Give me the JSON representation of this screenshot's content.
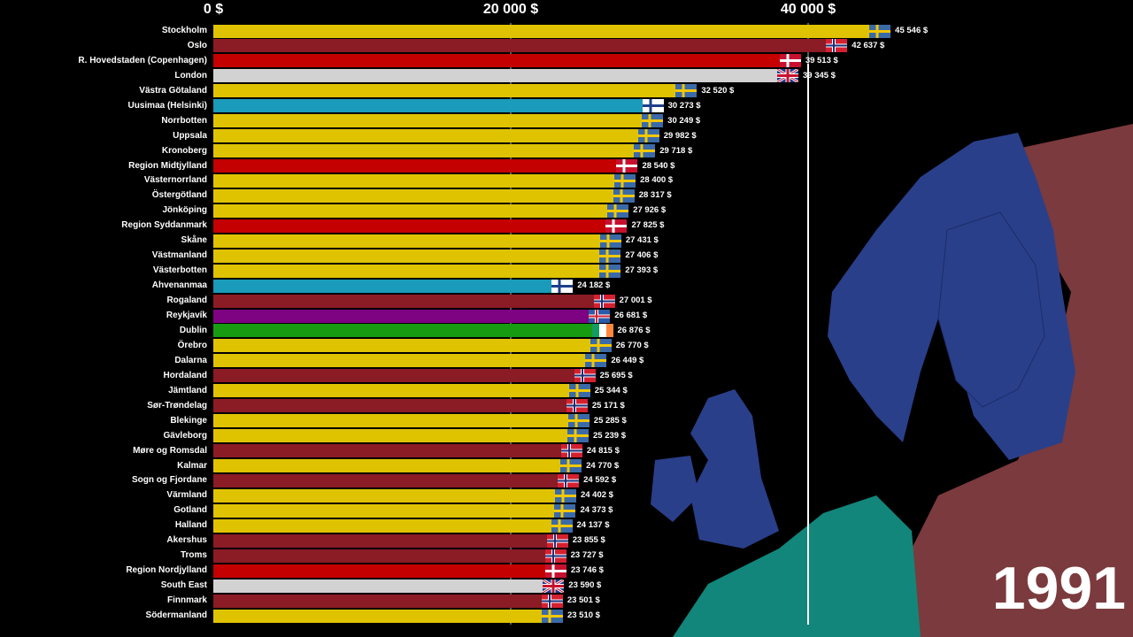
{
  "chart_data": {
    "type": "bar",
    "orientation": "horizontal",
    "xlim": [
      0,
      47000
    ],
    "x_ticks": [
      "0 $",
      "20 000 $",
      "40 000 $"
    ],
    "x_tick_values": [
      0,
      20000,
      40000
    ],
    "value_suffix": " $",
    "year": "1991",
    "country_colors": {
      "Sweden": "#e0c300",
      "Norway": "#8b1b25",
      "Denmark": "#c40000",
      "UK": "#d2d2d2",
      "Finland": "#1a9bb9",
      "Iceland": "#7d0383",
      "Ireland": "#179b11"
    },
    "bars": [
      {
        "label": "Stockholm",
        "value": 45546,
        "value_label": "45 546 $",
        "country": "Sweden"
      },
      {
        "label": "Oslo",
        "value": 42637,
        "value_label": "42 637 $",
        "country": "Norway"
      },
      {
        "label": "R. Hovedstaden (Copenhagen)",
        "value": 39513,
        "value_label": "39 513 $",
        "country": "Denmark"
      },
      {
        "label": "London",
        "value": 39345,
        "value_label": "39 345 $",
        "country": "UK"
      },
      {
        "label": "Västra Götaland",
        "value": 32520,
        "value_label": "32 520 $",
        "country": "Sweden"
      },
      {
        "label": "Uusimaa (Helsinki)",
        "value": 30273,
        "value_label": "30 273 $",
        "country": "Finland"
      },
      {
        "label": "Norrbotten",
        "value": 30249,
        "value_label": "30 249 $",
        "country": "Sweden"
      },
      {
        "label": "Uppsala",
        "value": 29982,
        "value_label": "29 982 $",
        "country": "Sweden"
      },
      {
        "label": "Kronoberg",
        "value": 29718,
        "value_label": "29 718 $",
        "country": "Sweden"
      },
      {
        "label": "Region Midtjylland",
        "value": 28540,
        "value_label": "28 540 $",
        "country": "Denmark"
      },
      {
        "label": "Västernorrland",
        "value": 28400,
        "value_label": "28 400 $",
        "country": "Sweden"
      },
      {
        "label": "Östergötland",
        "value": 28317,
        "value_label": "28 317 $",
        "country": "Sweden"
      },
      {
        "label": "Jönköping",
        "value": 27926,
        "value_label": "27 926 $",
        "country": "Sweden"
      },
      {
        "label": "Region Syddanmark",
        "value": 27825,
        "value_label": "27 825 $",
        "country": "Denmark"
      },
      {
        "label": "Skåne",
        "value": 27431,
        "value_label": "27 431 $",
        "country": "Sweden"
      },
      {
        "label": "Västmanland",
        "value": 27406,
        "value_label": "27 406 $",
        "country": "Sweden"
      },
      {
        "label": "Västerbotten",
        "value": 27393,
        "value_label": "27 393 $",
        "country": "Sweden"
      },
      {
        "label": "Ahvenanmaa",
        "value": 24182,
        "value_label": "24 182 $",
        "country": "Finland"
      },
      {
        "label": "Rogaland",
        "value": 27001,
        "value_label": "27 001 $",
        "country": "Norway"
      },
      {
        "label": "Reykjavík",
        "value": 26681,
        "value_label": "26 681 $",
        "country": "Iceland"
      },
      {
        "label": "Dublin",
        "value": 26876,
        "value_label": "26 876 $",
        "country": "Ireland"
      },
      {
        "label": "Örebro",
        "value": 26770,
        "value_label": "26 770 $",
        "country": "Sweden"
      },
      {
        "label": "Dalarna",
        "value": 26449,
        "value_label": "26 449 $",
        "country": "Sweden"
      },
      {
        "label": "Hordaland",
        "value": 25695,
        "value_label": "25 695 $",
        "country": "Norway"
      },
      {
        "label": "Jämtland",
        "value": 25344,
        "value_label": "25 344 $",
        "country": "Sweden"
      },
      {
        "label": "Sør-Trøndelag",
        "value": 25171,
        "value_label": "25 171 $",
        "country": "Norway"
      },
      {
        "label": "Blekinge",
        "value": 25285,
        "value_label": "25 285 $",
        "country": "Sweden"
      },
      {
        "label": "Gävleborg",
        "value": 25239,
        "value_label": "25 239 $",
        "country": "Sweden"
      },
      {
        "label": "Møre og Romsdal",
        "value": 24815,
        "value_label": "24 815 $",
        "country": "Norway"
      },
      {
        "label": "Kalmar",
        "value": 24770,
        "value_label": "24 770 $",
        "country": "Sweden"
      },
      {
        "label": "Sogn og Fjordane",
        "value": 24592,
        "value_label": "24 592 $",
        "country": "Norway"
      },
      {
        "label": "Värmland",
        "value": 24402,
        "value_label": "24 402 $",
        "country": "Sweden"
      },
      {
        "label": "Gotland",
        "value": 24373,
        "value_label": "24 373 $",
        "country": "Sweden"
      },
      {
        "label": "Halland",
        "value": 24137,
        "value_label": "24 137 $",
        "country": "Sweden"
      },
      {
        "label": "Akershus",
        "value": 23855,
        "value_label": "23 855 $",
        "country": "Norway"
      },
      {
        "label": "Troms",
        "value": 23727,
        "value_label": "23 727 $",
        "country": "Norway"
      },
      {
        "label": "Region Nordjylland",
        "value": 23746,
        "value_label": "23 746 $",
        "country": "Denmark"
      },
      {
        "label": "South East",
        "value": 23590,
        "value_label": "23 590 $",
        "country": "UK"
      },
      {
        "label": "Finnmark",
        "value": 23501,
        "value_label": "23 501 $",
        "country": "Norway"
      },
      {
        "label": "Södermanland",
        "value": 23510,
        "value_label": "23 510 $",
        "country": "Sweden"
      }
    ]
  }
}
